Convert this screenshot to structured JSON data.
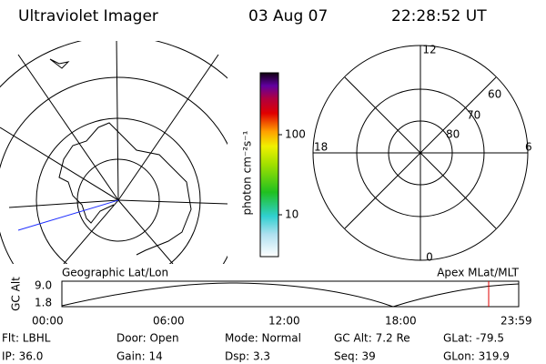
{
  "header": {
    "title": "Ultraviolet Imager",
    "date": "03 Aug 07",
    "time": "22:28:52 UT"
  },
  "colorbar": {
    "label": "photon cm⁻²s⁻¹",
    "ticks": [
      "100",
      "10"
    ]
  },
  "map": {
    "label": "Geographic Lat/Lon"
  },
  "polar": {
    "label": "Apex MLat/MLT",
    "mlt_labels": [
      "12",
      "18",
      "6",
      "0"
    ],
    "mlat_labels": [
      "60",
      "70",
      "80"
    ]
  },
  "altitude_plot": {
    "y_label": "GC Alt",
    "yticks": [
      "9.0",
      "1.8"
    ],
    "xticks": [
      "00:00",
      "06:00",
      "12:00",
      "18:00",
      "23:59"
    ]
  },
  "info": {
    "rows": [
      [
        "Flt: LBHL",
        "Door: Open",
        "Mode: Normal",
        "GC Alt: 7.2 Re",
        "GLat: -79.5"
      ],
      [
        "IP: 36.0",
        "Gain: 14",
        "Dsp: 3.3",
        "Seq: 39",
        "GLon: 319.9"
      ]
    ]
  }
}
